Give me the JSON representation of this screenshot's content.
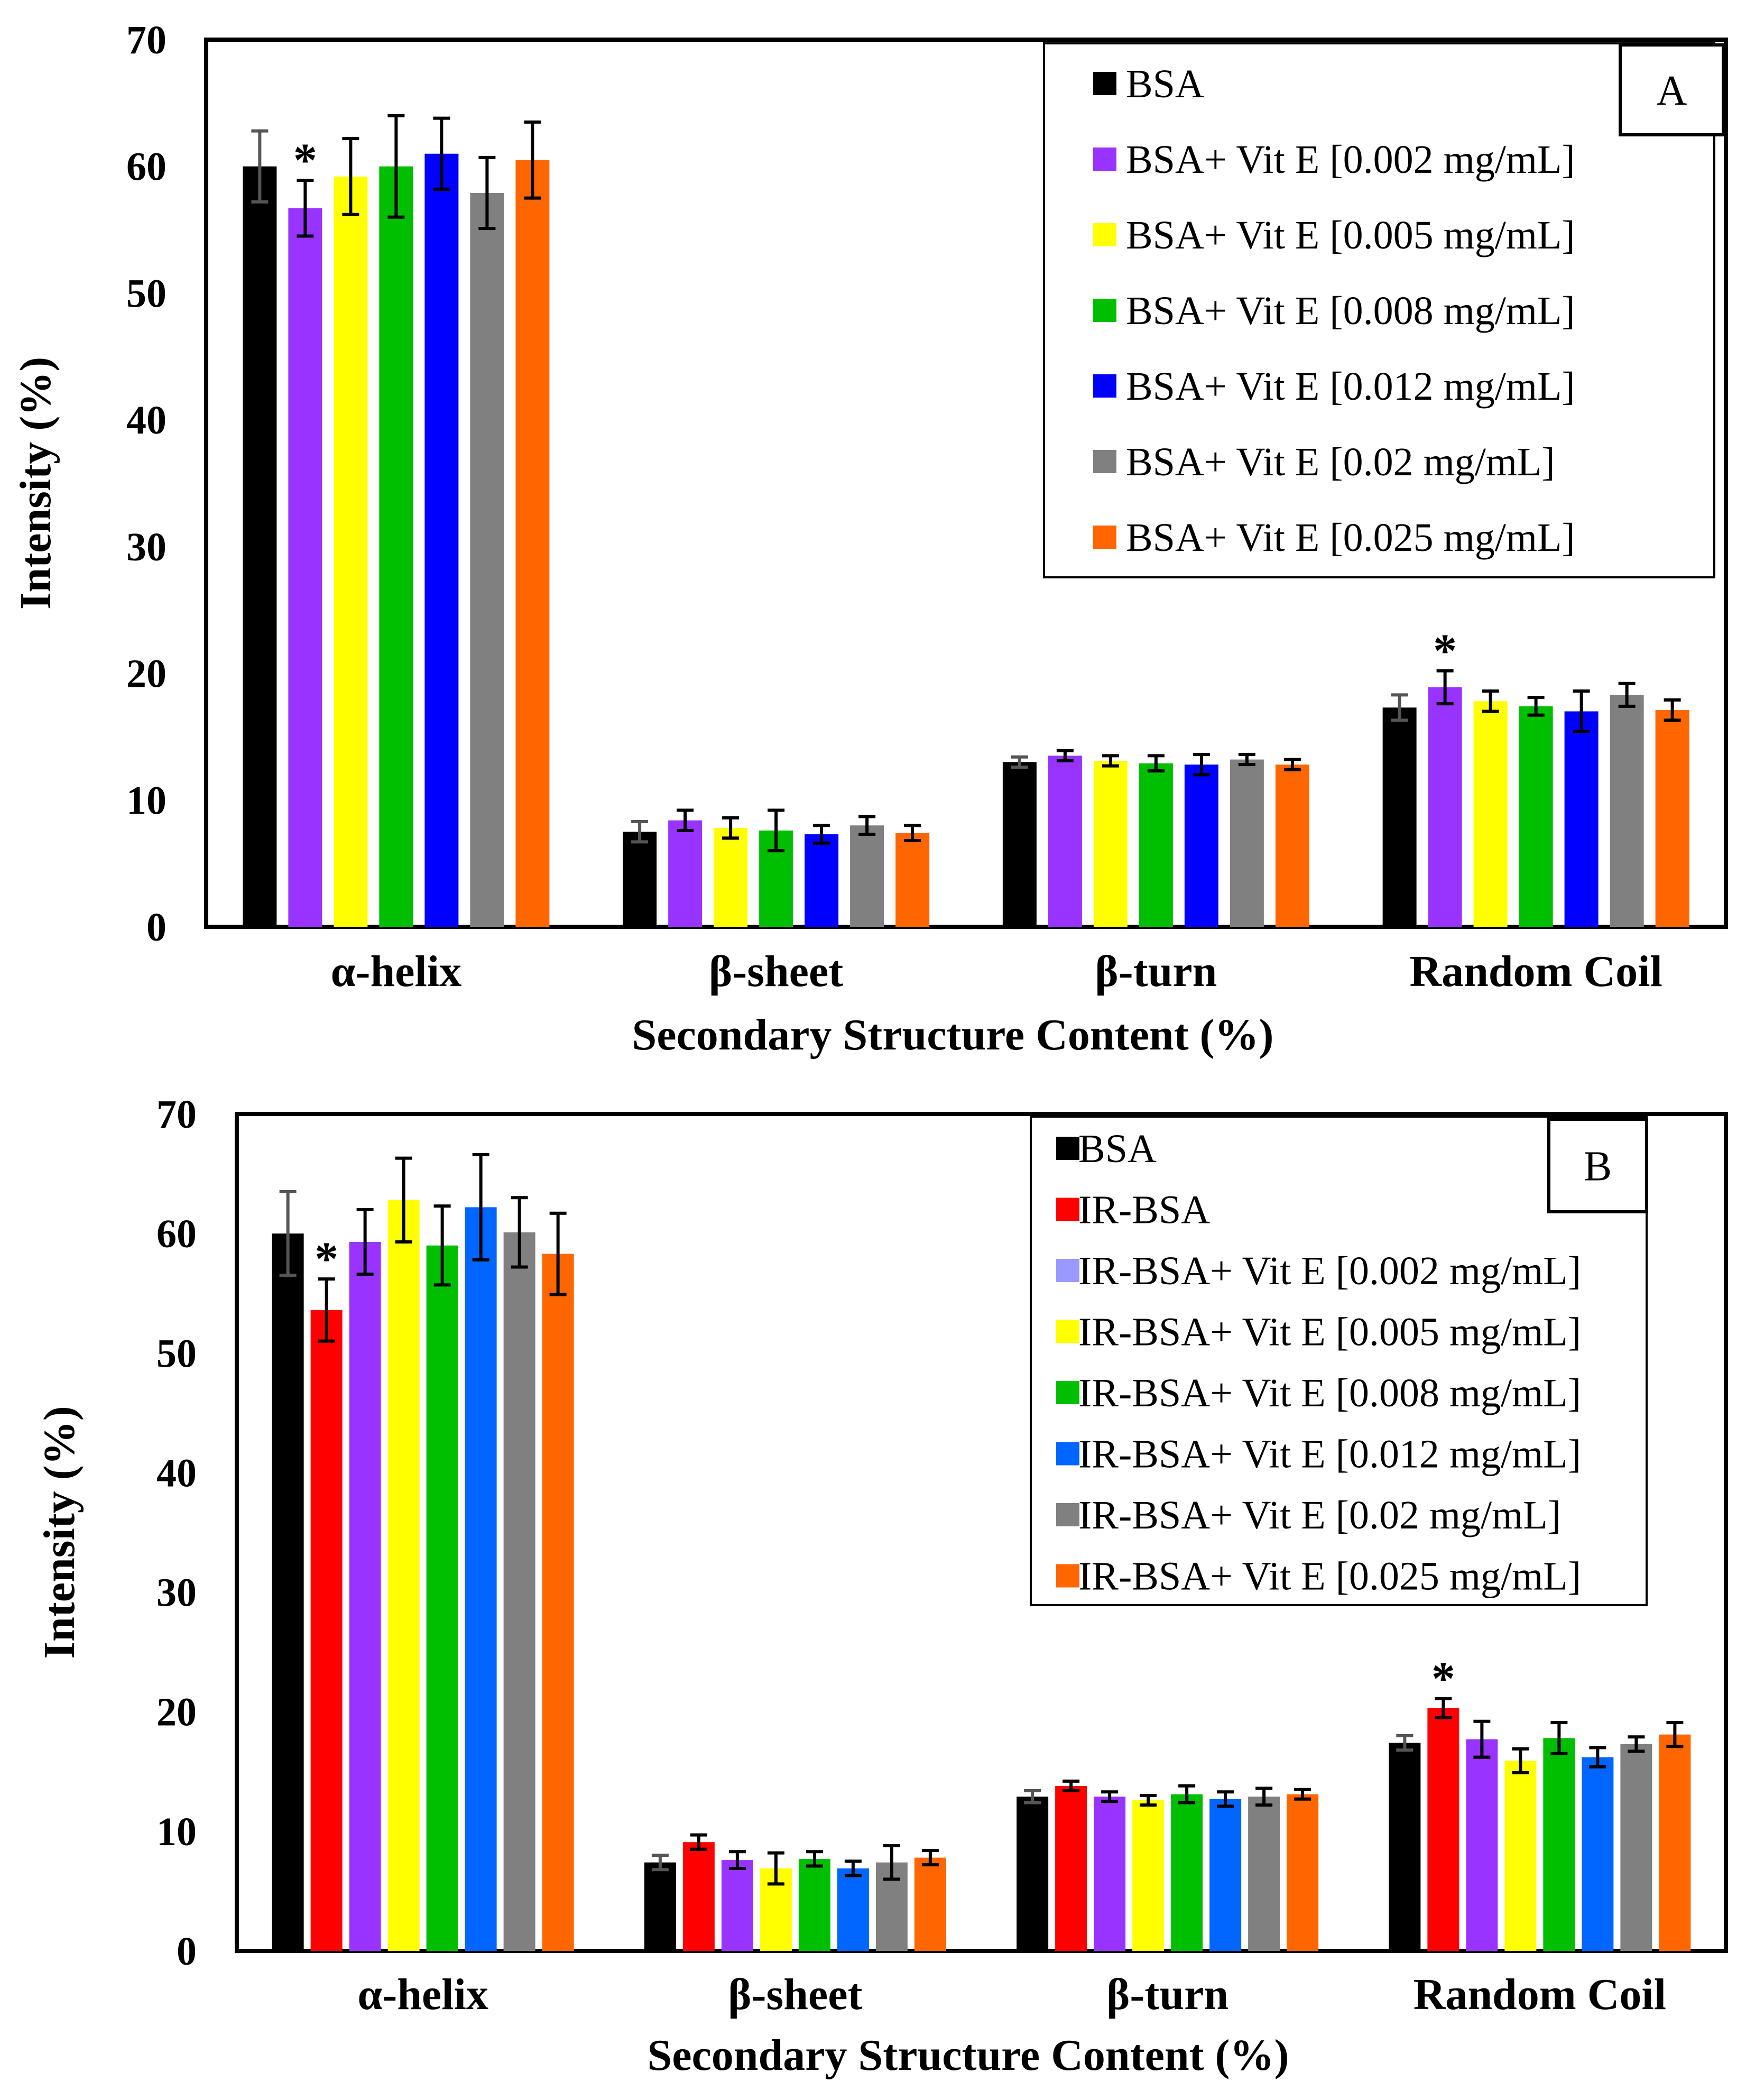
{
  "chart_data": [
    {
      "type": "bar",
      "panel_label": "A",
      "categories": [
        "α-helix",
        "β-sheet",
        "β-turn",
        "Random Coil"
      ],
      "xlabel": "Secondary Structure Content (%)",
      "ylabel": "Intensity (%)",
      "ylim": [
        0,
        70
      ],
      "yticks": [
        0,
        10,
        20,
        30,
        40,
        50,
        60,
        70
      ],
      "grid": false,
      "legend_position": "top-right",
      "series": [
        {
          "name": "BSA",
          "color": "#000000",
          "values": [
            60.0,
            7.5,
            13.0,
            17.3
          ],
          "errors": [
            2.8,
            0.8,
            0.4,
            1.0
          ]
        },
        {
          "name": "BSA+ Vit E [0.002 mg/mL]",
          "color": "#9933FF",
          "values": [
            56.7,
            8.4,
            13.5,
            18.9
          ],
          "errors": [
            2.2,
            0.8,
            0.4,
            1.3
          ]
        },
        {
          "name": "BSA+ Vit E [0.005 mg/mL]",
          "color": "#FFFF00",
          "values": [
            59.2,
            7.8,
            13.1,
            17.8
          ],
          "errors": [
            3.0,
            0.8,
            0.4,
            0.8
          ]
        },
        {
          "name": "BSA+ Vit E [0.008 mg/mL]",
          "color": "#00BF00",
          "values": [
            60.0,
            7.6,
            12.9,
            17.4
          ],
          "errors": [
            4.0,
            1.6,
            0.6,
            0.7
          ]
        },
        {
          "name": "BSA+ Vit E [0.012 mg/mL]",
          "color": "#0000FF",
          "values": [
            61.0,
            7.3,
            12.8,
            17.0
          ],
          "errors": [
            2.8,
            0.7,
            0.8,
            1.6
          ]
        },
        {
          "name": "BSA+ Vit E [0.02 mg/mL]",
          "color": "#808080",
          "values": [
            57.9,
            8.0,
            13.2,
            18.3
          ],
          "errors": [
            2.8,
            0.7,
            0.4,
            0.9
          ]
        },
        {
          "name": "BSA+ Vit E [0.025 mg/mL]",
          "color": "#FF6600",
          "values": [
            60.5,
            7.4,
            12.8,
            17.1
          ],
          "errors": [
            3.0,
            0.6,
            0.4,
            0.8
          ]
        }
      ],
      "annotations": [
        {
          "text": "*",
          "series": "BSA+ Vit E [0.002 mg/mL]",
          "category": "α-helix"
        },
        {
          "text": "*",
          "series": "BSA+ Vit E [0.002 mg/mL]",
          "category": "Random Coil"
        }
      ]
    },
    {
      "type": "bar",
      "panel_label": "B",
      "categories": [
        "α-helix",
        "β-sheet",
        "β-turn",
        "Random Coil"
      ],
      "xlabel": "Secondary Structure Content (%)",
      "ylabel": "Intensity (%)",
      "ylim": [
        0,
        70
      ],
      "yticks": [
        0,
        10,
        20,
        30,
        40,
        50,
        60,
        70
      ],
      "grid": false,
      "legend_position": "top-right",
      "series": [
        {
          "name": "BSA",
          "color": "#000000",
          "values": [
            60.0,
            7.4,
            12.9,
            17.4
          ],
          "errors": [
            3.5,
            0.6,
            0.5,
            0.6
          ]
        },
        {
          "name": "IR-BSA",
          "color": "#FF0000",
          "values": [
            53.6,
            9.1,
            13.8,
            20.3
          ],
          "errors": [
            2.6,
            0.6,
            0.4,
            0.8
          ]
        },
        {
          "name": "IR-BSA+ Vit E [0.002 mg/mL]",
          "color": "#9933FF",
          "values": [
            59.3,
            7.6,
            12.9,
            17.7
          ],
          "errors": [
            2.7,
            0.7,
            0.4,
            1.5
          ]
        },
        {
          "name": "IR-BSA+ Vit E [0.005 mg/mL]",
          "color": "#FFFF00",
          "values": [
            62.8,
            6.9,
            12.6,
            15.9
          ],
          "errors": [
            3.5,
            1.3,
            0.4,
            1.0
          ]
        },
        {
          "name": "IR-BSA+ Vit E [0.008 mg/mL]",
          "color": "#00BF00",
          "values": [
            59.0,
            7.7,
            13.1,
            17.8
          ],
          "errors": [
            3.3,
            0.6,
            0.7,
            1.3
          ]
        },
        {
          "name": "IR-BSA+ Vit E [0.012 mg/mL]",
          "color": "#0066FF",
          "values": [
            62.2,
            6.9,
            12.7,
            16.2
          ],
          "errors": [
            4.4,
            0.6,
            0.6,
            0.8
          ]
        },
        {
          "name": "IR-BSA+ Vit E [0.02 mg/mL]",
          "color": "#808080",
          "values": [
            60.1,
            7.4,
            12.9,
            17.3
          ],
          "errors": [
            2.9,
            1.4,
            0.7,
            0.6
          ]
        },
        {
          "name": "IR-BSA+ Vit E [0.025 mg/mL]",
          "color": "#FF6600",
          "values": [
            58.3,
            7.8,
            13.1,
            18.1
          ],
          "errors": [
            3.4,
            0.6,
            0.4,
            1.0
          ]
        }
      ],
      "legend_swatch_colors": [
        "#000000",
        "#FF0000",
        "#9999FF",
        "#FFFF00",
        "#00BF00",
        "#0066FF",
        "#808080",
        "#FF6600"
      ],
      "annotations": [
        {
          "text": "*",
          "series": "IR-BSA",
          "category": "α-helix"
        },
        {
          "text": "*",
          "series": "IR-BSA",
          "category": "Random Coil"
        }
      ]
    }
  ]
}
